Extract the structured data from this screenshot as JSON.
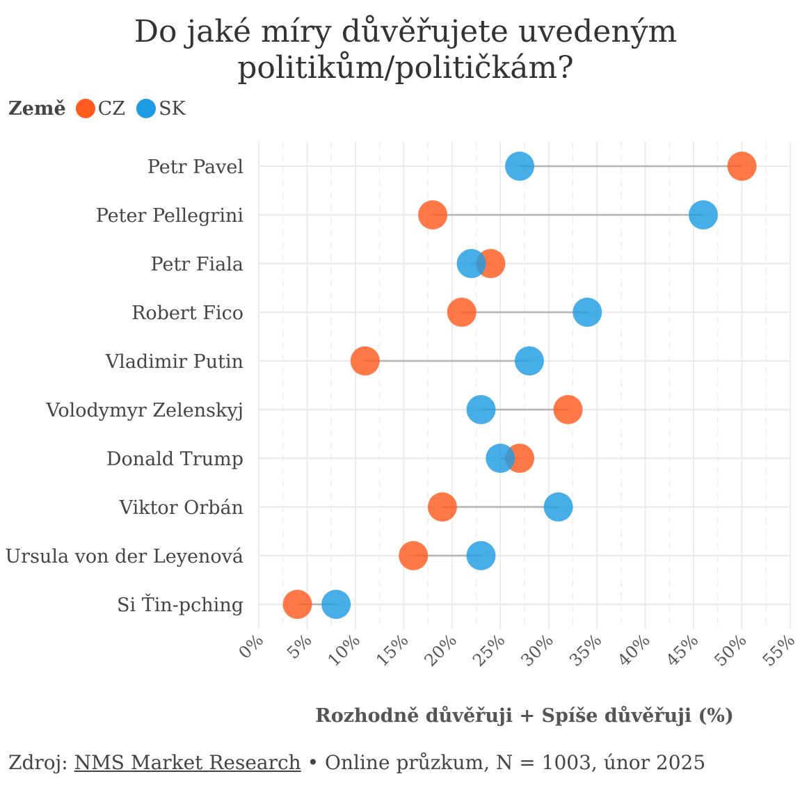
{
  "title_lines": [
    "Do jaké míry důvěřujete uvedeným",
    "politikům/političkám?"
  ],
  "legend": {
    "title": "Země",
    "items": [
      {
        "label": "CZ",
        "color": "#FF5A1F"
      },
      {
        "label": "SK",
        "color": "#1E9CE3"
      }
    ]
  },
  "chart_data": {
    "type": "dumbbell",
    "title": "Do jaké míry důvěřujete uvedeným politikům/političkám?",
    "xlabel": "Rozhodně důvěřuji + Spíše důvěřuji (%)",
    "ylabel": "",
    "xlim": [
      0,
      55
    ],
    "xticks": [
      0,
      5,
      10,
      15,
      20,
      25,
      30,
      35,
      40,
      45,
      50,
      55
    ],
    "xtick_labels": [
      "0%",
      "5%",
      "10%",
      "15%",
      "20%",
      "25%",
      "30%",
      "35%",
      "40%",
      "45%",
      "50%",
      "55%"
    ],
    "categories": [
      "Petr Pavel",
      "Peter Pellegrini",
      "Petr Fiala",
      "Robert Fico",
      "Vladimir Putin",
      "Volodymyr Zelenskyj",
      "Donald Trump",
      "Viktor Orbán",
      "Ursula von der Leyenová",
      "Si Ťin-pching"
    ],
    "series": [
      {
        "name": "CZ",
        "color": "#FF5A1F",
        "values": [
          50,
          18,
          24,
          21,
          11,
          32,
          27,
          19,
          16,
          4
        ]
      },
      {
        "name": "SK",
        "color": "#1E9CE3",
        "values": [
          27,
          46,
          22,
          34,
          28,
          23,
          25,
          31,
          23,
          8
        ]
      }
    ]
  },
  "source": {
    "prefix": "Zdroj: ",
    "link": "NMS Market Research",
    "suffix": " • Online průzkum, N = 1003, únor 2025"
  }
}
